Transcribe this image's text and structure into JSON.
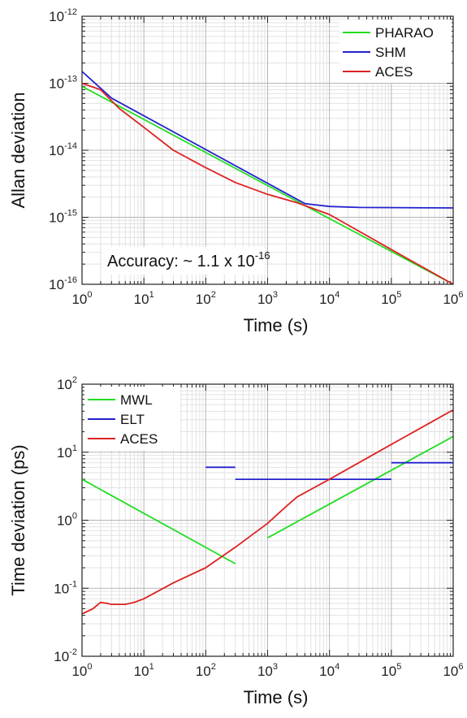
{
  "chart_data": [
    {
      "type": "line",
      "xlabel": "Time (s)",
      "ylabel": "Allan deviation",
      "xscale": "log",
      "yscale": "log",
      "xlim": [
        1,
        1000000
      ],
      "ylim": [
        1e-16,
        1e-12
      ],
      "x_ticks": [
        {
          "base": "10",
          "exp": "0"
        },
        {
          "base": "10",
          "exp": "1"
        },
        {
          "base": "10",
          "exp": "2"
        },
        {
          "base": "10",
          "exp": "3"
        },
        {
          "base": "10",
          "exp": "4"
        },
        {
          "base": "10",
          "exp": "5"
        },
        {
          "base": "10",
          "exp": "6"
        }
      ],
      "y_ticks": [
        {
          "base": "10",
          "exp": "-16"
        },
        {
          "base": "10",
          "exp": "-15"
        },
        {
          "base": "10",
          "exp": "-14"
        },
        {
          "base": "10",
          "exp": "-13"
        },
        {
          "base": "10",
          "exp": "-12"
        }
      ],
      "grid": true,
      "legend_position": "top-right",
      "annotation": {
        "text": "Accuracy: ~ 1.1 x 10",
        "exp": "-16"
      },
      "series": [
        {
          "name": "PHARAO",
          "color": "#22dd22",
          "points": [
            [
              1,
              9e-14
            ],
            [
              4000,
              1.5e-15
            ],
            [
              1000000,
              1e-16
            ]
          ]
        },
        {
          "name": "SHM",
          "color": "#2222cc",
          "points": [
            [
              1,
              1.5e-13
            ],
            [
              3,
              6e-14
            ],
            [
              4000,
              1.6e-15
            ],
            [
              10000,
              1.45e-15
            ],
            [
              30000,
              1.4e-15
            ],
            [
              1000000,
              1.38e-15
            ]
          ]
        },
        {
          "name": "ACES",
          "color": "#dd2222",
          "points": [
            [
              1,
              1e-13
            ],
            [
              2,
              8e-14
            ],
            [
              4,
              4.2e-14
            ],
            [
              10,
              2.2e-14
            ],
            [
              30,
              1e-14
            ],
            [
              100,
              5.5e-15
            ],
            [
              300,
              3.3e-15
            ],
            [
              1000,
              2.2e-15
            ],
            [
              3000,
              1.65e-15
            ],
            [
              10000,
              1.1e-15
            ],
            [
              100000,
              3.3e-16
            ],
            [
              1000000,
              1e-16
            ]
          ]
        }
      ]
    },
    {
      "type": "line",
      "xlabel": "Time (s)",
      "ylabel": "Time deviation (ps)",
      "xscale": "log",
      "yscale": "log",
      "xlim": [
        1,
        1000000
      ],
      "ylim": [
        0.01,
        100
      ],
      "x_ticks": [
        {
          "base": "10",
          "exp": "0"
        },
        {
          "base": "10",
          "exp": "1"
        },
        {
          "base": "10",
          "exp": "2"
        },
        {
          "base": "10",
          "exp": "3"
        },
        {
          "base": "10",
          "exp": "4"
        },
        {
          "base": "10",
          "exp": "5"
        },
        {
          "base": "10",
          "exp": "6"
        }
      ],
      "y_ticks": [
        {
          "base": "10",
          "exp": "-2"
        },
        {
          "base": "10",
          "exp": "-1"
        },
        {
          "base": "10",
          "exp": "0"
        },
        {
          "base": "10",
          "exp": "1"
        },
        {
          "base": "10",
          "exp": "2"
        }
      ],
      "grid": true,
      "legend_position": "top-left",
      "series": [
        {
          "name": "MWL",
          "color": "#22dd22",
          "segments": [
            [
              [
                1,
                4
              ],
              [
                300,
                0.23
              ]
            ],
            [
              [
                1000,
                0.55
              ],
              [
                1000000,
                17
              ]
            ]
          ]
        },
        {
          "name": "ELT",
          "color": "#2222cc",
          "segments": [
            [
              [
                100,
                6
              ],
              [
                300,
                6
              ]
            ],
            [
              [
                300,
                4
              ],
              [
                100000,
                4
              ]
            ],
            [
              [
                100000,
                7
              ],
              [
                1000000,
                7
              ]
            ]
          ]
        },
        {
          "name": "ACES",
          "color": "#dd2222",
          "segments": [
            [
              [
                1,
                0.042
              ],
              [
                1.5,
                0.05
              ],
              [
                2,
                0.062
              ],
              [
                2.5,
                0.06
              ],
              [
                3,
                0.058
              ],
              [
                5,
                0.058
              ],
              [
                7,
                0.062
              ],
              [
                10,
                0.07
              ],
              [
                30,
                0.12
              ],
              [
                100,
                0.2
              ],
              [
                300,
                0.4
              ],
              [
                1000,
                0.9
              ],
              [
                2000,
                1.6
              ],
              [
                3000,
                2.2
              ],
              [
                10000,
                4
              ],
              [
                100000,
                13
              ],
              [
                1000000,
                42
              ]
            ]
          ]
        }
      ]
    }
  ]
}
